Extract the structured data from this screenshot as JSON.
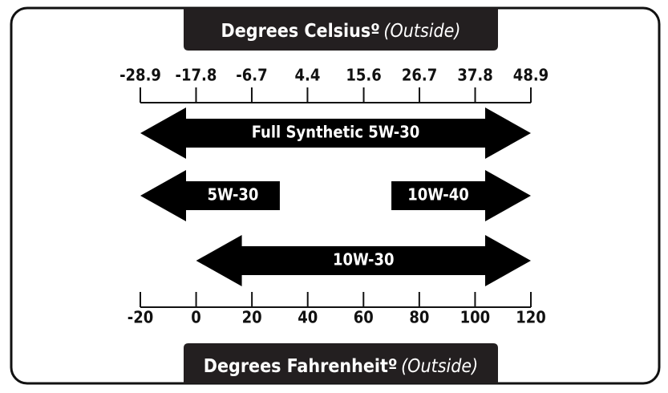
{
  "celsius_axis": {
    "title": "Degrees Celsiusº",
    "qualifier": "(Outside)",
    "xlim": [
      -28.9,
      48.9
    ],
    "ticks": [
      -28.9,
      -17.8,
      -6.7,
      4.4,
      15.6,
      26.7,
      37.8,
      48.9
    ]
  },
  "fahrenheit_axis": {
    "title": "Degrees Fahrenheitº",
    "qualifier": "(Outside)",
    "xlim": [
      -20,
      120
    ],
    "ticks": [
      -20,
      0,
      20,
      40,
      60,
      80,
      100,
      120
    ]
  },
  "ranges": [
    {
      "label": "Full Synthetic 5W-30",
      "from": -20,
      "to": 120,
      "heads": "both"
    },
    {
      "label": "5W-30",
      "from": -20,
      "to": 30,
      "heads": "left"
    },
    {
      "label": "10W-40",
      "from": 70,
      "to": 120,
      "heads": "right"
    },
    {
      "label": "10W-30",
      "from": 0,
      "to": 120,
      "heads": "both"
    }
  ]
}
